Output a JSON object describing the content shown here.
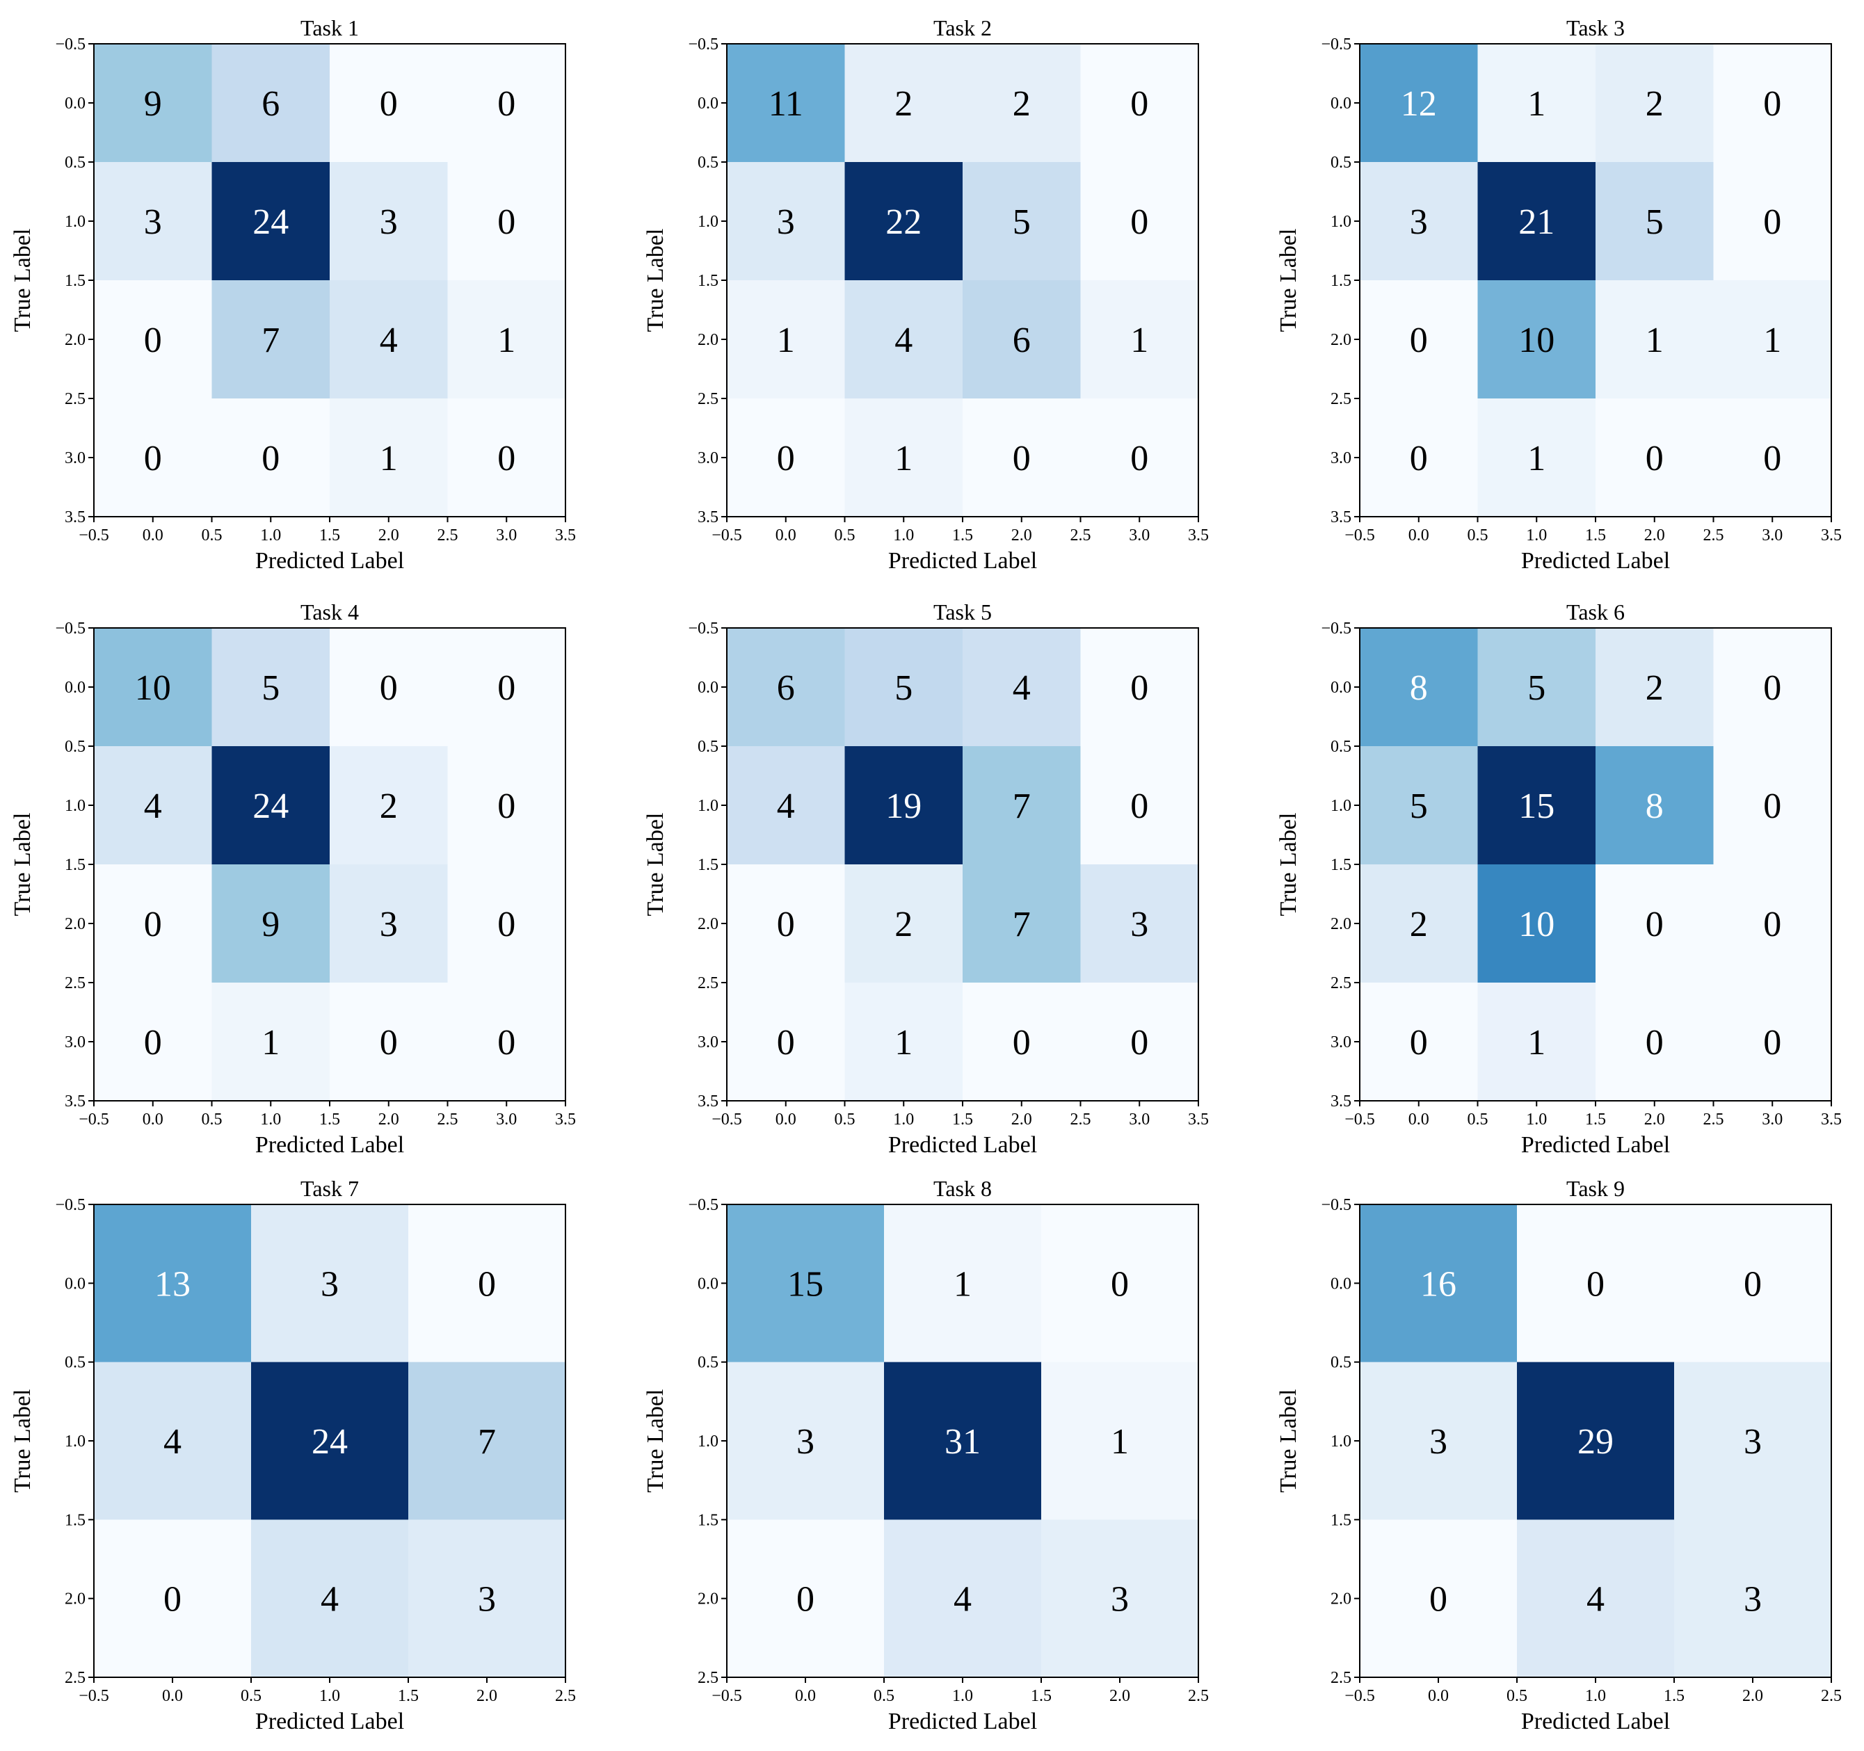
{
  "chart_data": [
    {
      "type": "heatmap",
      "title": "Task 1",
      "xlabel": "Predicted Label",
      "ylabel": "True Label",
      "matrix": [
        [
          9,
          6,
          0,
          0
        ],
        [
          3,
          24,
          3,
          0
        ],
        [
          0,
          7,
          4,
          1
        ],
        [
          0,
          0,
          1,
          0
        ]
      ],
      "xticks": [
        "−0.5",
        "0.0",
        "0.5",
        "1.0",
        "1.5",
        "2.0",
        "2.5",
        "3.0",
        "3.5"
      ],
      "yticks": [
        "−0.5",
        "0.0",
        "0.5",
        "1.0",
        "1.5",
        "2.0",
        "2.5",
        "3.0",
        "3.5"
      ],
      "colormap": "Blues",
      "vmax": 24
    },
    {
      "type": "heatmap",
      "title": "Task 2",
      "xlabel": "Predicted Label",
      "ylabel": "True Label",
      "matrix": [
        [
          11,
          2,
          2,
          0
        ],
        [
          3,
          22,
          5,
          0
        ],
        [
          1,
          4,
          6,
          1
        ],
        [
          0,
          1,
          0,
          0
        ]
      ],
      "xticks": [
        "−0.5",
        "0.0",
        "0.5",
        "1.0",
        "1.5",
        "2.0",
        "2.5",
        "3.0",
        "3.5"
      ],
      "yticks": [
        "−0.5",
        "0.0",
        "0.5",
        "1.0",
        "1.5",
        "2.0",
        "2.5",
        "3.0",
        "3.5"
      ],
      "colormap": "Blues",
      "vmax": 22
    },
    {
      "type": "heatmap",
      "title": "Task 3",
      "xlabel": "Predicted Label",
      "ylabel": "True Label",
      "matrix": [
        [
          12,
          1,
          2,
          0
        ],
        [
          3,
          21,
          5,
          0
        ],
        [
          0,
          10,
          1,
          1
        ],
        [
          0,
          1,
          0,
          0
        ]
      ],
      "xticks": [
        "−0.5",
        "0.0",
        "0.5",
        "1.0",
        "1.5",
        "2.0",
        "2.5",
        "3.0",
        "3.5"
      ],
      "yticks": [
        "−0.5",
        "0.0",
        "0.5",
        "1.0",
        "1.5",
        "2.0",
        "2.5",
        "3.0",
        "3.5"
      ],
      "colormap": "Blues",
      "vmax": 21
    },
    {
      "type": "heatmap",
      "title": "Task 4",
      "xlabel": "Predicted Label",
      "ylabel": "True Label",
      "matrix": [
        [
          10,
          5,
          0,
          0
        ],
        [
          4,
          24,
          2,
          0
        ],
        [
          0,
          9,
          3,
          0
        ],
        [
          0,
          1,
          0,
          0
        ]
      ],
      "xticks": [
        "−0.5",
        "0.0",
        "0.5",
        "1.0",
        "1.5",
        "2.0",
        "2.5",
        "3.0",
        "3.5"
      ],
      "yticks": [
        "−0.5",
        "0.0",
        "0.5",
        "1.0",
        "1.5",
        "2.0",
        "2.5",
        "3.0",
        "3.5"
      ],
      "colormap": "Blues",
      "vmax": 24
    },
    {
      "type": "heatmap",
      "title": "Task 5",
      "xlabel": "Predicted Label",
      "ylabel": "True Label",
      "matrix": [
        [
          6,
          5,
          4,
          0
        ],
        [
          4,
          19,
          7,
          0
        ],
        [
          0,
          2,
          7,
          3
        ],
        [
          0,
          1,
          0,
          0
        ]
      ],
      "xticks": [
        "−0.5",
        "0.0",
        "0.5",
        "1.0",
        "1.5",
        "2.0",
        "2.5",
        "3.0",
        "3.5"
      ],
      "yticks": [
        "−0.5",
        "0.0",
        "0.5",
        "1.0",
        "1.5",
        "2.0",
        "2.5",
        "3.0",
        "3.5"
      ],
      "colormap": "Blues",
      "vmax": 19
    },
    {
      "type": "heatmap",
      "title": "Task 6",
      "xlabel": "Predicted Label",
      "ylabel": "True Label",
      "matrix": [
        [
          8,
          5,
          2,
          0
        ],
        [
          5,
          15,
          8,
          0
        ],
        [
          2,
          10,
          0,
          0
        ],
        [
          0,
          1,
          0,
          0
        ]
      ],
      "xticks": [
        "−0.5",
        "0.0",
        "0.5",
        "1.0",
        "1.5",
        "2.0",
        "2.5",
        "3.0",
        "3.5"
      ],
      "yticks": [
        "−0.5",
        "0.0",
        "0.5",
        "1.0",
        "1.5",
        "2.0",
        "2.5",
        "3.0",
        "3.5"
      ],
      "colormap": "Blues",
      "vmax": 15
    },
    {
      "type": "heatmap",
      "title": "Task 7",
      "xlabel": "Predicted Label",
      "ylabel": "True Label",
      "matrix": [
        [
          13,
          3,
          0
        ],
        [
          4,
          24,
          7
        ],
        [
          0,
          4,
          3
        ]
      ],
      "xticks": [
        "−0.5",
        "0.0",
        "0.5",
        "1.0",
        "1.5",
        "2.0",
        "2.5"
      ],
      "yticks": [
        "−0.5",
        "0.0",
        "0.5",
        "1.0",
        "1.5",
        "2.0",
        "2.5"
      ],
      "colormap": "Blues",
      "vmax": 24
    },
    {
      "type": "heatmap",
      "title": "Task 8",
      "xlabel": "Predicted Label",
      "ylabel": "True Label",
      "matrix": [
        [
          15,
          1,
          0
        ],
        [
          3,
          31,
          1
        ],
        [
          0,
          4,
          3
        ]
      ],
      "xticks": [
        "−0.5",
        "0.0",
        "0.5",
        "1.0",
        "1.5",
        "2.0",
        "2.5"
      ],
      "yticks": [
        "−0.5",
        "0.0",
        "0.5",
        "1.0",
        "1.5",
        "2.0",
        "2.5"
      ],
      "colormap": "Blues",
      "vmax": 31
    },
    {
      "type": "heatmap",
      "title": "Task 9",
      "xlabel": "Predicted Label",
      "ylabel": "True Label",
      "matrix": [
        [
          16,
          0,
          0
        ],
        [
          3,
          29,
          3
        ],
        [
          0,
          4,
          3
        ]
      ],
      "xticks": [
        "−0.5",
        "0.0",
        "0.5",
        "1.0",
        "1.5",
        "2.0",
        "2.5"
      ],
      "yticks": [
        "−0.5",
        "0.0",
        "0.5",
        "1.0",
        "1.5",
        "2.0",
        "2.5"
      ],
      "colormap": "Blues",
      "vmax": 29
    }
  ]
}
